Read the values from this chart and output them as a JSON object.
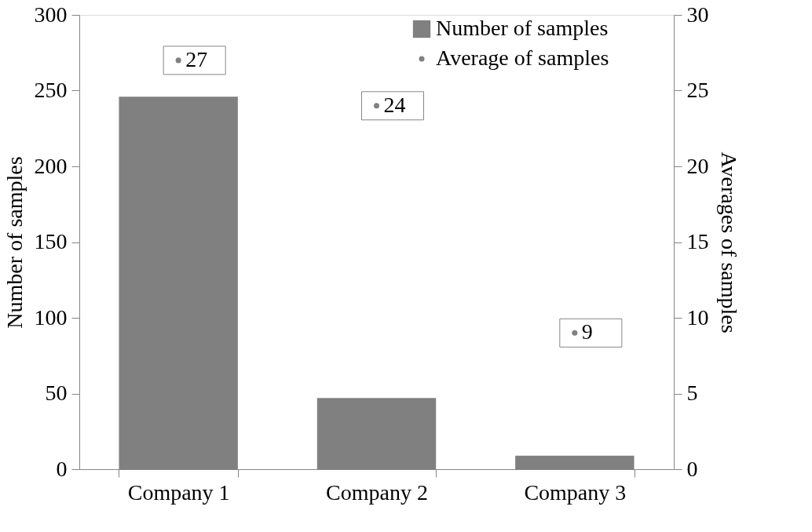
{
  "chart_data": {
    "type": "bar",
    "categories": [
      "Company 1",
      "Company 2",
      "Company 3"
    ],
    "series": [
      {
        "name": "Number of samples",
        "color": "#808080",
        "values": [
          246,
          47,
          9
        ]
      },
      {
        "name": "Average of samples",
        "type": "scatter",
        "axis": "y2",
        "color": "#808080",
        "values": [
          27,
          24,
          9
        ],
        "data_labels": true
      }
    ],
    "ylabel": "Number of samples",
    "y2label": "Averages of samples",
    "ylim": [
      0,
      300
    ],
    "yticks": [
      0,
      50,
      100,
      150,
      200,
      250,
      300
    ],
    "y2lim": [
      0,
      30
    ],
    "y2ticks": [
      0,
      5,
      10,
      15,
      20,
      25,
      30
    ],
    "legend": "top right",
    "grid": false,
    "marker": "circle"
  }
}
